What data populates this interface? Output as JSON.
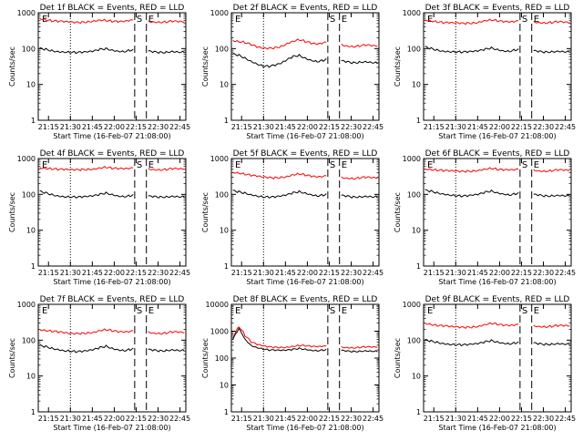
{
  "chart_data": [
    {
      "type": "line",
      "title": "Det 1f BLACK = Events, RED = LLD",
      "xlabel": "Start Time (16-Feb-07 21:08:00)",
      "ylabel": "Counts/sec",
      "yscale": "log",
      "ylim": [
        1,
        1000
      ],
      "ytick_labels": [
        "1",
        "10",
        "100",
        "1000"
      ],
      "xtick_labels": [
        "21:15",
        "21:30",
        "21:45",
        "22:00",
        "22:15",
        "22:30",
        "22:45"
      ],
      "markers": [
        "E",
        "S",
        "E"
      ],
      "series": [
        {
          "color": "#ff0000",
          "values": [
            700,
            650,
            600,
            580,
            560,
            540,
            530,
            540,
            560,
            600,
            640,
            620,
            580,
            560,
            560,
            600,
            620,
            600,
            580,
            560,
            550,
            560,
            580,
            560,
            540
          ]
        },
        {
          "color": "#000000",
          "values": [
            100,
            95,
            88,
            84,
            82,
            80,
            78,
            78,
            80,
            84,
            95,
            100,
            92,
            86,
            84,
            90,
            95,
            88,
            84,
            80,
            78,
            80,
            85,
            82,
            80
          ]
        }
      ]
    },
    {
      "type": "line",
      "title": "Det 2f BLACK = Events, RED = LLD",
      "xlabel": "Start Time (16-Feb-07 21:08:00)",
      "ylabel": "Counts/sec",
      "yscale": "log",
      "ylim": [
        1,
        1000
      ],
      "ytick_labels": [
        "1",
        "10",
        "100",
        "1000"
      ],
      "xtick_labels": [
        "21:15",
        "21:30",
        "21:45",
        "22:00",
        "22:15",
        "22:30",
        "22:45"
      ],
      "markers": [
        "E",
        "S",
        "E"
      ],
      "series": [
        {
          "color": "#ff0000",
          "values": [
            170,
            160,
            150,
            130,
            110,
            100,
            100,
            105,
            115,
            140,
            165,
            180,
            160,
            140,
            130,
            140,
            160,
            150,
            130,
            120,
            115,
            120,
            125,
            120,
            115
          ]
        },
        {
          "color": "#000000",
          "values": [
            70,
            65,
            55,
            45,
            38,
            33,
            32,
            34,
            38,
            48,
            60,
            65,
            55,
            48,
            44,
            47,
            55,
            50,
            45,
            42,
            40,
            42,
            44,
            42,
            40
          ]
        }
      ]
    },
    {
      "type": "line",
      "title": "Det 3f BLACK = Events, RED = LLD",
      "xlabel": "Start Time (16-Feb-07 21:08:00)",
      "ylabel": "Counts/sec",
      "yscale": "log",
      "ylim": [
        1,
        1000
      ],
      "ytick_labels": [
        "1",
        "10",
        "100",
        "1000"
      ],
      "xtick_labels": [
        "21:15",
        "21:30",
        "21:45",
        "22:00",
        "22:15",
        "22:30",
        "22:45"
      ],
      "markers": [
        "E",
        "S",
        "E"
      ],
      "series": [
        {
          "color": "#ff0000",
          "values": [
            640,
            600,
            560,
            530,
            520,
            510,
            500,
            510,
            520,
            560,
            620,
            640,
            600,
            560,
            540,
            560,
            620,
            600,
            560,
            540,
            530,
            540,
            560,
            540,
            520
          ]
        },
        {
          "color": "#000000",
          "values": [
            110,
            100,
            92,
            86,
            84,
            82,
            80,
            80,
            82,
            86,
            96,
            105,
            95,
            88,
            85,
            92,
            98,
            92,
            86,
            82,
            80,
            82,
            86,
            84,
            82
          ]
        }
      ]
    },
    {
      "type": "line",
      "title": "Det 4f BLACK = Events, RED = LLD",
      "xlabel": "Start Time (16-Feb-07 21:08:00)",
      "ylabel": "Counts/sec",
      "yscale": "log",
      "ylim": [
        1,
        1000
      ],
      "ytick_labels": [
        "1",
        "10",
        "100",
        "1000"
      ],
      "xtick_labels": [
        "21:15",
        "21:30",
        "21:45",
        "22:00",
        "22:15",
        "22:30",
        "22:45"
      ],
      "markers": [
        "E",
        "S",
        "E"
      ],
      "series": [
        {
          "color": "#ff0000",
          "values": [
            560,
            540,
            520,
            500,
            490,
            480,
            480,
            490,
            500,
            520,
            560,
            580,
            540,
            520,
            510,
            520,
            560,
            540,
            520,
            500,
            490,
            500,
            520,
            510,
            500
          ]
        },
        {
          "color": "#000000",
          "values": [
            120,
            110,
            100,
            92,
            88,
            86,
            84,
            84,
            86,
            90,
            100,
            110,
            100,
            92,
            88,
            92,
            100,
            94,
            88,
            86,
            84,
            86,
            90,
            88,
            86
          ]
        }
      ]
    },
    {
      "type": "line",
      "title": "Det 5f BLACK = Events, RED = LLD",
      "xlabel": "Start Time (16-Feb-07 21:08:00)",
      "ylabel": "Counts/sec",
      "yscale": "log",
      "ylim": [
        1,
        1000
      ],
      "ytick_labels": [
        "1",
        "10",
        "100",
        "1000"
      ],
      "xtick_labels": [
        "21:15",
        "21:30",
        "21:45",
        "22:00",
        "22:15",
        "22:30",
        "22:45"
      ],
      "markers": [
        "E",
        "S",
        "E"
      ],
      "series": [
        {
          "color": "#ff0000",
          "values": [
            420,
            400,
            370,
            340,
            320,
            300,
            290,
            290,
            300,
            320,
            360,
            380,
            350,
            320,
            300,
            310,
            340,
            320,
            300,
            290,
            280,
            290,
            300,
            290,
            280
          ]
        },
        {
          "color": "#000000",
          "values": [
            125,
            118,
            110,
            100,
            92,
            86,
            84,
            84,
            88,
            96,
            110,
            120,
            110,
            100,
            92,
            96,
            106,
            100,
            92,
            88,
            84,
            86,
            90,
            88,
            86
          ]
        }
      ]
    },
    {
      "type": "line",
      "title": "Det 6f BLACK = Events, RED = LLD",
      "xlabel": "Start Time (16-Feb-07 21:08:00)",
      "ylabel": "Counts/sec",
      "yscale": "log",
      "ylim": [
        1,
        1000
      ],
      "ytick_labels": [
        "1",
        "10",
        "100",
        "1000"
      ],
      "xtick_labels": [
        "21:15",
        "21:30",
        "21:45",
        "22:00",
        "22:15",
        "22:30",
        "22:45"
      ],
      "markers": [
        "E",
        "S",
        "E"
      ],
      "series": [
        {
          "color": "#ff0000",
          "values": [
            520,
            500,
            480,
            460,
            450,
            440,
            430,
            440,
            450,
            480,
            520,
            540,
            500,
            480,
            470,
            480,
            520,
            500,
            480,
            460,
            450,
            460,
            480,
            470,
            460
          ]
        },
        {
          "color": "#000000",
          "values": [
            130,
            122,
            112,
            104,
            98,
            94,
            90,
            90,
            94,
            100,
            115,
            125,
            112,
            104,
            98,
            104,
            114,
            106,
            98,
            94,
            90,
            92,
            96,
            94,
            92
          ]
        }
      ]
    },
    {
      "type": "line",
      "title": "Det 7f BLACK = Events, RED = LLD",
      "xlabel": "Start Time (16-Feb-07 21:08:00)",
      "ylabel": "Counts/sec",
      "yscale": "log",
      "ylim": [
        1,
        1000
      ],
      "ytick_labels": [
        "1",
        "10",
        "100",
        "1000"
      ],
      "xtick_labels": [
        "21:15",
        "21:30",
        "21:45",
        "22:00",
        "22:15",
        "22:30",
        "22:45"
      ],
      "markers": [
        "E",
        "S",
        "E"
      ],
      "series": [
        {
          "color": "#ff0000",
          "values": [
            200,
            190,
            180,
            170,
            160,
            150,
            150,
            155,
            160,
            170,
            190,
            200,
            185,
            170,
            165,
            170,
            190,
            180,
            170,
            160,
            155,
            160,
            170,
            165,
            160
          ]
        },
        {
          "color": "#000000",
          "values": [
            70,
            66,
            60,
            56,
            52,
            50,
            48,
            48,
            50,
            54,
            62,
            68,
            60,
            55,
            52,
            55,
            62,
            58,
            54,
            52,
            50,
            52,
            55,
            53,
            52
          ]
        }
      ]
    },
    {
      "type": "line",
      "title": "Det 8f BLACK = Events, RED = LLD",
      "xlabel": "Start Time (16-Feb-07 21:08:00)",
      "ylabel": "Counts/sec",
      "yscale": "log",
      "ylim": [
        1,
        10000
      ],
      "ytick_labels": [
        "1",
        "10",
        "100",
        "1000",
        "10000"
      ],
      "xtick_labels": [
        "21:15",
        "21:30",
        "21:45",
        "22:00",
        "22:15",
        "22:30",
        "22:45"
      ],
      "markers": [
        "E",
        "S",
        "E"
      ],
      "series": [
        {
          "color": "#ff0000",
          "values": [
            500,
            1500,
            700,
            400,
            320,
            280,
            260,
            250,
            250,
            260,
            280,
            300,
            290,
            270,
            260,
            270,
            280,
            270,
            260,
            250,
            245,
            250,
            260,
            255,
            250
          ]
        },
        {
          "color": "#000000",
          "values": [
            450,
            1200,
            500,
            300,
            250,
            220,
            200,
            195,
            190,
            195,
            210,
            230,
            215,
            200,
            190,
            200,
            210,
            200,
            190,
            180,
            175,
            180,
            190,
            185,
            180
          ]
        }
      ]
    },
    {
      "type": "line",
      "title": "Det 9f BLACK = Events, RED = LLD",
      "xlabel": "Start Time (16-Feb-07 21:08:00)",
      "ylabel": "Counts/sec",
      "yscale": "log",
      "ylim": [
        1,
        1000
      ],
      "ytick_labels": [
        "1",
        "10",
        "100",
        "1000"
      ],
      "xtick_labels": [
        "21:15",
        "21:30",
        "21:45",
        "22:00",
        "22:15",
        "22:30",
        "22:45"
      ],
      "markers": [
        "E",
        "S",
        "E"
      ],
      "series": [
        {
          "color": "#ff0000",
          "values": [
            300,
            280,
            260,
            250,
            240,
            230,
            225,
            228,
            235,
            250,
            280,
            300,
            280,
            260,
            250,
            260,
            280,
            270,
            255,
            245,
            240,
            245,
            255,
            250,
            245
          ]
        },
        {
          "color": "#000000",
          "values": [
            100,
            94,
            88,
            82,
            78,
            76,
            74,
            74,
            76,
            80,
            90,
            98,
            90,
            84,
            80,
            84,
            92,
            86,
            82,
            78,
            76,
            78,
            82,
            80,
            78
          ]
        }
      ]
    }
  ]
}
